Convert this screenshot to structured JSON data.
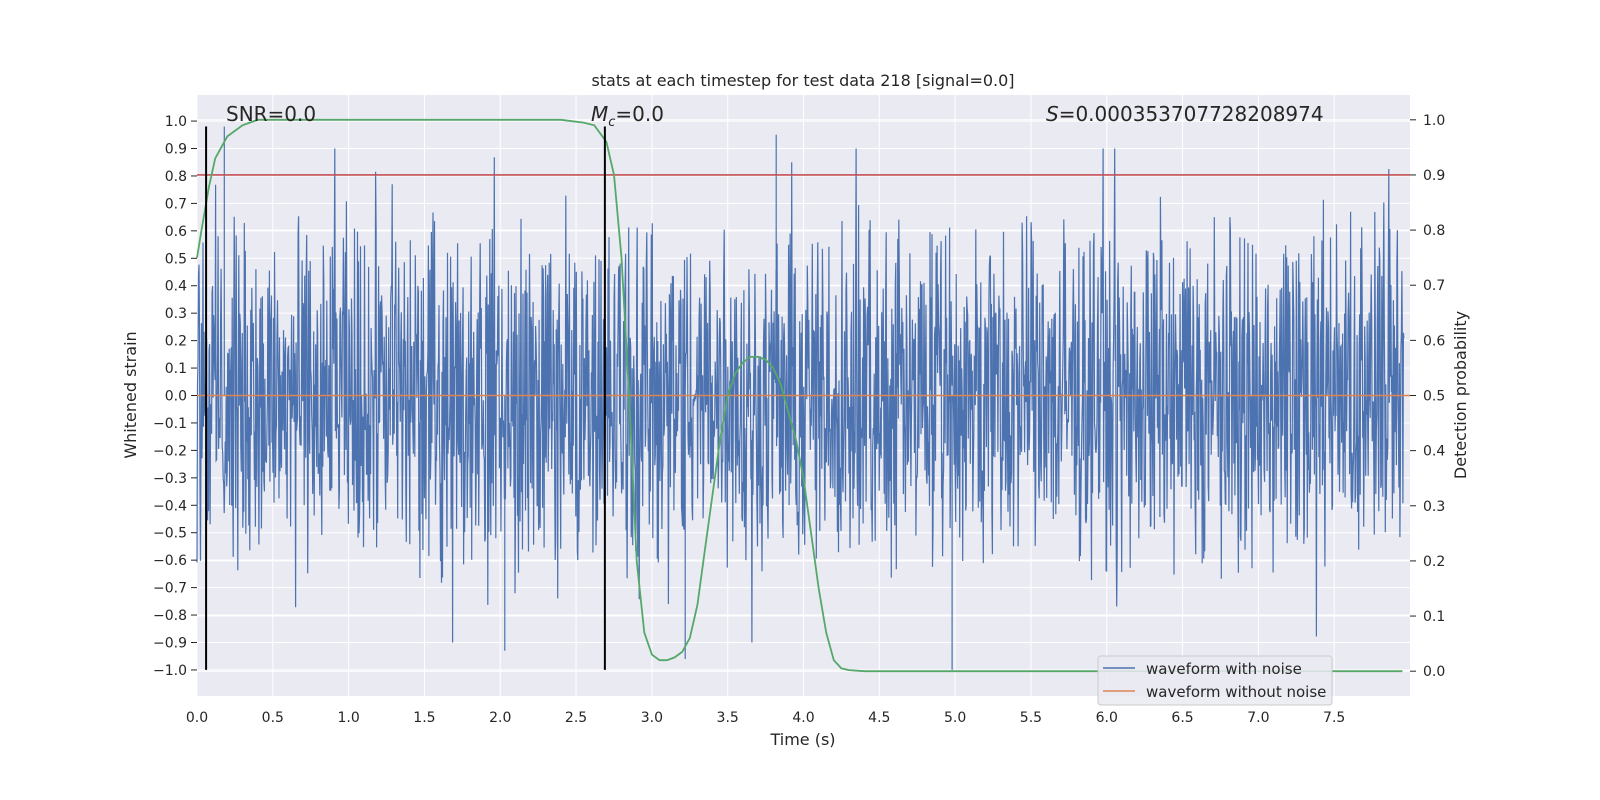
{
  "chart_data": {
    "type": "line",
    "title": "stats at each timestep for test data 218 [signal=0.0]",
    "xlabel": "Time (s)",
    "ylabel": "Whitened strain",
    "y2label": "Detection probability",
    "xlim": [
      0.0,
      8.0
    ],
    "ylim": [
      -1.095,
      1.095
    ],
    "y2lim": [
      -0.045,
      1.045
    ],
    "x_ticks": [
      "0.0",
      "0.5",
      "1.0",
      "1.5",
      "2.0",
      "2.5",
      "3.0",
      "3.5",
      "4.0",
      "4.5",
      "5.0",
      "5.5",
      "6.0",
      "6.5",
      "7.0",
      "7.5"
    ],
    "y_ticks": [
      "1.0",
      "0.9",
      "0.8",
      "0.7",
      "0.6",
      "0.5",
      "0.4",
      "0.3",
      "0.2",
      "0.1",
      "0.0",
      "−0.1",
      "−0.2",
      "−0.3",
      "−0.4",
      "−0.5",
      "−0.6",
      "−0.7",
      "−0.8",
      "−0.9",
      "−1.0"
    ],
    "y2_ticks": [
      "1.0",
      "0.9",
      "0.8",
      "0.7",
      "0.6",
      "0.5",
      "0.4",
      "0.3",
      "0.2",
      "0.1",
      "0.0"
    ],
    "grid": true,
    "legend_position": "bottom-right",
    "series": [
      {
        "name": "waveform with noise",
        "color": "#4c72b0",
        "kind": "noise band",
        "approx_band": [
          -0.45,
          0.5
        ],
        "notable_peaks": [
          [
            0.18,
            0.98
          ],
          [
            3.82,
            0.95
          ],
          [
            4.98,
            -1.0
          ],
          [
            2.03,
            -0.93
          ],
          [
            3.22,
            -0.96
          ]
        ]
      },
      {
        "name": "waveform without noise",
        "color": "#dd8452",
        "kind": "flat",
        "value": 0.0
      },
      {
        "name": "",
        "color": "#55a868",
        "axis": "right",
        "x": [
          0.0,
          0.03,
          0.08,
          0.12,
          0.2,
          0.3,
          0.4,
          0.5,
          1.0,
          1.5,
          2.0,
          2.4,
          2.55,
          2.62,
          2.7,
          2.75,
          2.8,
          2.85,
          2.9,
          2.95,
          3.0,
          3.05,
          3.1,
          3.15,
          3.2,
          3.25,
          3.3,
          3.35,
          3.4,
          3.45,
          3.5,
          3.55,
          3.6,
          3.65,
          3.7,
          3.75,
          3.8,
          3.85,
          3.9,
          3.95,
          4.0,
          4.05,
          4.1,
          4.15,
          4.2,
          4.25,
          4.3,
          4.4,
          5.0,
          6.0,
          7.0,
          7.95
        ],
        "y": [
          0.75,
          0.8,
          0.88,
          0.93,
          0.97,
          0.99,
          1.0,
          1.0,
          1.0,
          1.0,
          1.0,
          1.0,
          0.995,
          0.99,
          0.96,
          0.9,
          0.75,
          0.5,
          0.2,
          0.07,
          0.03,
          0.02,
          0.02,
          0.025,
          0.035,
          0.06,
          0.12,
          0.22,
          0.32,
          0.42,
          0.5,
          0.54,
          0.56,
          0.57,
          0.57,
          0.565,
          0.55,
          0.52,
          0.47,
          0.42,
          0.35,
          0.25,
          0.15,
          0.07,
          0.02,
          0.005,
          0.002,
          0.0,
          0.0,
          0.0,
          0.0,
          0.0
        ]
      }
    ],
    "threshold_line": {
      "axis": "right",
      "value": 0.9,
      "color": "#c44e52"
    },
    "vertical_markers": {
      "x": [
        0.06,
        2.69
      ],
      "y_range": [
        -1.0,
        0.98
      ],
      "color": "#000000"
    },
    "annotations": [
      {
        "text": "SNR=0.0"
      },
      {
        "text_parts": [
          "M",
          "c",
          "=0.0"
        ]
      },
      {
        "text_parts": [
          "S",
          "=0.000353707728208974"
        ]
      }
    ]
  }
}
